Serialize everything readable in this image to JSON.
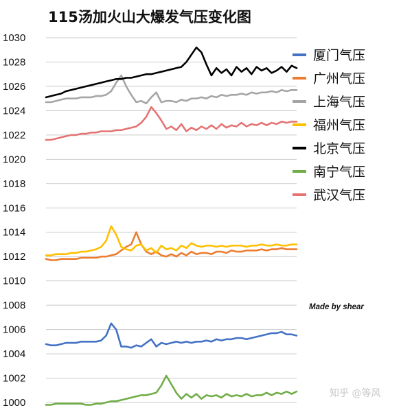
{
  "chart_data": {
    "type": "line",
    "title": "115汤加火山大爆发气压变化图",
    "xlabel": "",
    "ylabel": "",
    "ylim": [
      1000,
      1030
    ],
    "yticks": [
      "1000",
      "1002",
      "1004",
      "1006",
      "1008",
      "1010",
      "1012",
      "1014",
      "1016",
      "1018",
      "1020",
      "1022",
      "1024",
      "1026",
      "1028",
      "1030"
    ],
    "grid": true,
    "legend_position": "right",
    "x": [
      0,
      2,
      4,
      6,
      8,
      10,
      12,
      14,
      16,
      18,
      20,
      22,
      24,
      26,
      28,
      30,
      32,
      34,
      36,
      38,
      40,
      42,
      44,
      46,
      48,
      50,
      52,
      54,
      56,
      58,
      60,
      62,
      64,
      66,
      68,
      70,
      72,
      74,
      76,
      78,
      80,
      82,
      84,
      86,
      88,
      90,
      92,
      94,
      96,
      98,
      100
    ],
    "series": [
      {
        "name": "厦门气压",
        "color": "#4472c4",
        "values": [
          1004.8,
          1004.7,
          1004.7,
          1004.8,
          1004.9,
          1004.9,
          1004.9,
          1005.0,
          1005.0,
          1005.0,
          1005.0,
          1005.1,
          1005.5,
          1006.5,
          1006.0,
          1004.6,
          1004.6,
          1004.5,
          1004.7,
          1004.6,
          1004.9,
          1005.2,
          1004.6,
          1004.9,
          1004.8,
          1004.9,
          1005.0,
          1004.9,
          1005.0,
          1004.9,
          1005.0,
          1005.0,
          1005.1,
          1005.0,
          1005.2,
          1005.1,
          1005.2,
          1005.2,
          1005.3,
          1005.3,
          1005.2,
          1005.3,
          1005.4,
          1005.5,
          1005.6,
          1005.7,
          1005.7,
          1005.8,
          1005.6,
          1005.6,
          1005.5
        ]
      },
      {
        "name": "广州气压",
        "color": "#ed7d31",
        "values": [
          1011.8,
          1011.7,
          1011.7,
          1011.8,
          1011.8,
          1011.8,
          1011.8,
          1011.9,
          1011.9,
          1011.9,
          1011.9,
          1012.0,
          1012.0,
          1012.1,
          1012.2,
          1012.5,
          1012.8,
          1013.0,
          1014.0,
          1013.0,
          1012.4,
          1012.2,
          1012.4,
          1012.1,
          1012.0,
          1012.2,
          1012.0,
          1012.3,
          1012.1,
          1012.4,
          1012.2,
          1012.3,
          1012.3,
          1012.2,
          1012.4,
          1012.4,
          1012.3,
          1012.5,
          1012.4,
          1012.4,
          1012.5,
          1012.5,
          1012.5,
          1012.6,
          1012.5,
          1012.6,
          1012.6,
          1012.7,
          1012.6,
          1012.6,
          1012.6
        ]
      },
      {
        "name": "上海气压",
        "color": "#a5a5a5",
        "values": [
          1024.7,
          1024.7,
          1024.8,
          1024.9,
          1025.0,
          1025.0,
          1025.0,
          1025.1,
          1025.1,
          1025.1,
          1025.2,
          1025.2,
          1025.3,
          1025.6,
          1026.3,
          1026.9,
          1026.0,
          1025.3,
          1024.7,
          1024.8,
          1024.6,
          1025.1,
          1025.5,
          1024.7,
          1024.8,
          1024.8,
          1024.7,
          1024.9,
          1024.8,
          1025.0,
          1025.0,
          1025.1,
          1025.0,
          1025.2,
          1025.1,
          1025.3,
          1025.2,
          1025.3,
          1025.3,
          1025.4,
          1025.3,
          1025.5,
          1025.4,
          1025.5,
          1025.5,
          1025.6,
          1025.5,
          1025.7,
          1025.6,
          1025.7,
          1025.7
        ]
      },
      {
        "name": "福州气压",
        "color": "#ffc000",
        "values": [
          1012.1,
          1012.1,
          1012.2,
          1012.2,
          1012.2,
          1012.3,
          1012.3,
          1012.4,
          1012.4,
          1012.5,
          1012.6,
          1012.8,
          1013.3,
          1014.5,
          1013.8,
          1012.8,
          1012.6,
          1012.5,
          1012.9,
          1013.0,
          1012.5,
          1012.7,
          1012.3,
          1012.9,
          1012.6,
          1012.7,
          1012.5,
          1012.9,
          1012.7,
          1013.1,
          1012.9,
          1012.8,
          1012.9,
          1012.9,
          1012.8,
          1012.9,
          1012.8,
          1012.9,
          1012.9,
          1012.9,
          1012.8,
          1012.9,
          1012.9,
          1013.0,
          1012.9,
          1012.9,
          1013.0,
          1012.9,
          1012.9,
          1013.0,
          1013.0
        ]
      },
      {
        "name": "北京气压",
        "color": "#000000",
        "values": [
          1025.1,
          1025.2,
          1025.3,
          1025.4,
          1025.6,
          1025.7,
          1025.8,
          1025.9,
          1026.0,
          1026.1,
          1026.2,
          1026.3,
          1026.4,
          1026.5,
          1026.6,
          1026.6,
          1026.7,
          1026.7,
          1026.8,
          1026.9,
          1027.0,
          1027.0,
          1027.1,
          1027.2,
          1027.3,
          1027.4,
          1027.5,
          1027.6,
          1028.0,
          1028.6,
          1029.2,
          1028.8,
          1027.8,
          1026.9,
          1027.5,
          1027.1,
          1027.4,
          1026.9,
          1027.6,
          1027.2,
          1027.5,
          1027.0,
          1027.6,
          1027.3,
          1027.5,
          1027.1,
          1027.3,
          1027.6,
          1027.2,
          1027.7,
          1027.5
        ]
      },
      {
        "name": "南宁气压",
        "color": "#70ad47",
        "values": [
          999.8,
          999.8,
          999.9,
          999.9,
          999.9,
          999.9,
          999.9,
          999.9,
          999.8,
          999.8,
          999.9,
          999.9,
          1000.0,
          1000.1,
          1000.1,
          1000.2,
          1000.3,
          1000.4,
          1000.5,
          1000.6,
          1000.6,
          1000.7,
          1000.8,
          1001.4,
          1002.2,
          1001.5,
          1000.8,
          1000.3,
          1000.7,
          1000.4,
          1000.7,
          1000.3,
          1000.6,
          1000.5,
          1000.6,
          1000.4,
          1000.7,
          1000.5,
          1000.6,
          1000.5,
          1000.7,
          1000.5,
          1000.6,
          1000.6,
          1000.8,
          1000.6,
          1000.8,
          1000.7,
          1000.9,
          1000.7,
          1000.9
        ]
      },
      {
        "name": "武汉气压",
        "color": "#e57373",
        "values": [
          1021.6,
          1021.6,
          1021.7,
          1021.8,
          1021.9,
          1022.0,
          1022.0,
          1022.1,
          1022.1,
          1022.2,
          1022.2,
          1022.3,
          1022.3,
          1022.3,
          1022.4,
          1022.4,
          1022.5,
          1022.6,
          1022.7,
          1023.0,
          1023.5,
          1024.3,
          1023.8,
          1023.2,
          1022.5,
          1022.7,
          1022.4,
          1022.9,
          1022.3,
          1022.6,
          1022.4,
          1022.7,
          1022.5,
          1022.8,
          1022.5,
          1022.9,
          1022.6,
          1022.8,
          1022.7,
          1023.0,
          1022.7,
          1022.9,
          1022.8,
          1023.0,
          1022.8,
          1023.0,
          1022.9,
          1023.1,
          1023.0,
          1023.1,
          1023.1
        ]
      }
    ],
    "annotations": [
      "Made by shear",
      "知乎 @等风"
    ]
  }
}
